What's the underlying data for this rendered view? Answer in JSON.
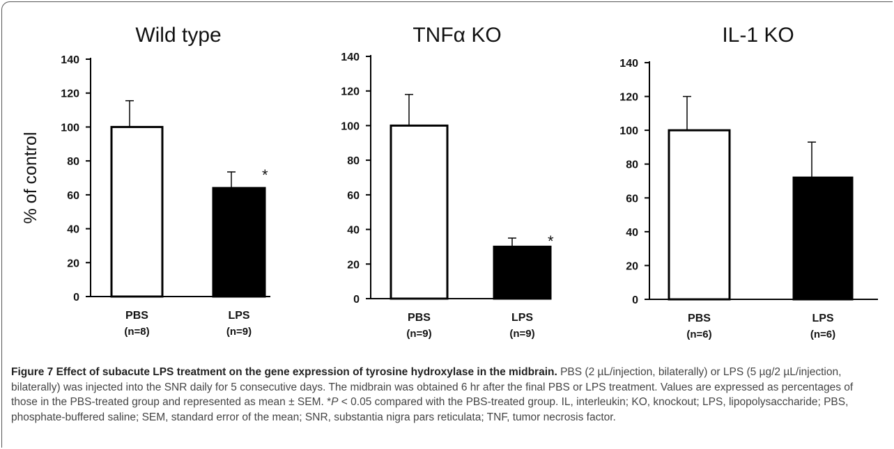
{
  "chart_data": [
    {
      "type": "bar",
      "title": "Wild type",
      "ylabel": "% of control",
      "xlabel": "",
      "ylim": [
        0,
        140
      ],
      "yticks": [
        0,
        20,
        40,
        60,
        80,
        100,
        120,
        140
      ],
      "categories": [
        "PBS",
        "LPS"
      ],
      "category_n": [
        "(n=8)",
        "(n=9)"
      ],
      "values": [
        100,
        64
      ],
      "errors": [
        15.5,
        9.5
      ],
      "fill_colors": [
        "#ffffff",
        "#000000"
      ],
      "annotations": [
        "",
        "*"
      ],
      "grid": false
    },
    {
      "type": "bar",
      "title": "TNFα KO",
      "ylabel": "",
      "xlabel": "",
      "ylim": [
        0,
        140
      ],
      "yticks": [
        0,
        20,
        40,
        60,
        80,
        100,
        120,
        140
      ],
      "categories": [
        "PBS",
        "LPS"
      ],
      "category_n": [
        "(n=9)",
        "(n=9)"
      ],
      "values": [
        100,
        30
      ],
      "errors": [
        18,
        5
      ],
      "fill_colors": [
        "#ffffff",
        "#000000"
      ],
      "annotations": [
        "",
        "*"
      ],
      "grid": false
    },
    {
      "type": "bar",
      "title": "IL-1 KO",
      "ylabel": "",
      "xlabel": "",
      "ylim": [
        0,
        140
      ],
      "yticks": [
        0,
        20,
        40,
        60,
        80,
        100,
        120,
        140
      ],
      "categories": [
        "PBS",
        "LPS"
      ],
      "category_n": [
        "(n=6)",
        "(n=6)"
      ],
      "values": [
        100,
        72
      ],
      "errors": [
        20,
        21
      ],
      "fill_colors": [
        "#ffffff",
        "#000000"
      ],
      "annotations": [
        "",
        ""
      ],
      "grid": false
    }
  ],
  "caption": {
    "label": "Figure 7 Effect of subacute LPS treatment on the gene expression of tyrosine hydroxylase in the midbrain.",
    "text_before_p": " PBS (2 µL/injection, bilaterally) or LPS (5 µg/2 µL/injection, bilaterally) was injected into the SNR daily for 5 consecutive days. The midbrain was obtained 6 hr after the final PBS or LPS treatment. Values are expressed as percentages of those in the PBS-treated group and represented as mean ± SEM. *",
    "p_symbol": "P",
    "text_after_p": " < 0.05 compared with the PBS-treated group. IL, interleukin; KO, knockout; LPS, lipopolysaccharide; PBS, phosphate-buffered saline; SEM, standard error of the mean; SNR, substantia nigra pars reticulata;  TNF, tumor necrosis factor."
  }
}
